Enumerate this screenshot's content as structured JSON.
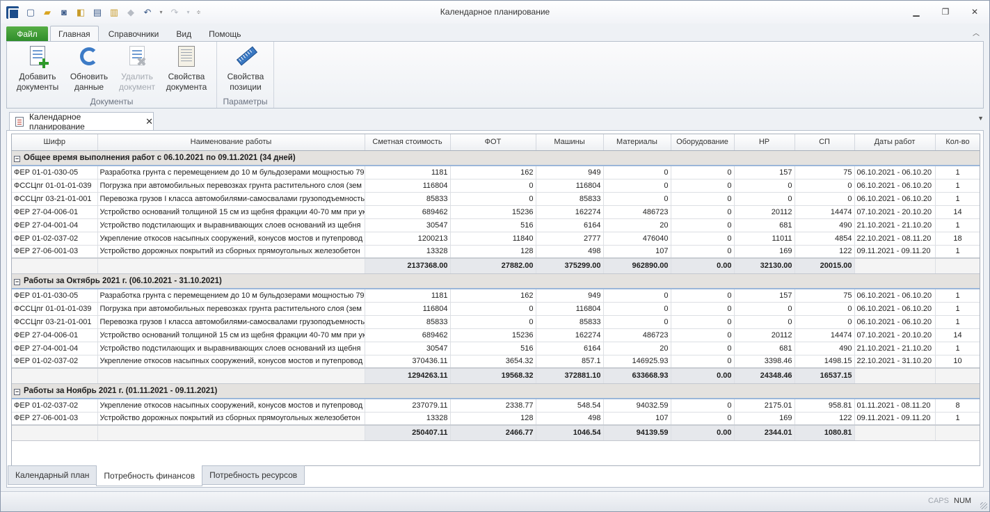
{
  "window": {
    "title": "Календарное планирование",
    "controls": [
      "minimize-icon",
      "restore-icon",
      "close-icon"
    ]
  },
  "quick_access": [
    "new-file-icon",
    "open-folder-icon",
    "save-icon",
    "save-all-icon",
    "print-icon",
    "print-preview-icon",
    "disabled-icon",
    "undo-icon",
    "redo-icon",
    "customize-icon"
  ],
  "ribbon": {
    "file_tab": "Файл",
    "tabs": [
      "Главная",
      "Справочники",
      "Вид",
      "Помощь"
    ],
    "active_tab": "Главная",
    "groups": [
      {
        "label": "Документы",
        "buttons": [
          {
            "line1": "Добавить",
            "line2": "документы",
            "icon": "add-document-icon",
            "enabled": true
          },
          {
            "line1": "Обновить",
            "line2": "данные",
            "icon": "refresh-icon",
            "enabled": true
          },
          {
            "line1": "Удалить",
            "line2": "документ",
            "icon": "delete-document-icon",
            "enabled": false
          },
          {
            "line1": "Свойства",
            "line2": "документа",
            "icon": "document-properties-icon",
            "enabled": true
          }
        ]
      },
      {
        "label": "Параметры",
        "buttons": [
          {
            "line1": "Свойства",
            "line2": "позиции",
            "icon": "ruler-icon",
            "enabled": true
          }
        ]
      }
    ]
  },
  "document_tab": {
    "label": "Календарное планирование",
    "close": "✕"
  },
  "grid": {
    "columns": [
      "Шифр",
      "Наименование работы",
      "Сметная стоимость",
      "ФОТ",
      "Машины",
      "Материалы",
      "Оборудование",
      "НР",
      "СП",
      "Даты работ",
      "Кол-во"
    ],
    "groups": [
      {
        "title": "Общее время выполнения работ с 06.10.2021 по 09.11.2021 (34 дней)",
        "rows": [
          [
            "ФЕР 01-01-030-05",
            "Разработка грунта с перемещением до 10 м бульдозерами мощностью 79 к",
            "1181",
            "162",
            "949",
            "0",
            "0",
            "157",
            "75",
            "06.10.2021 - 06.10.20",
            "1"
          ],
          [
            "ФССЦпг 01-01-01-039",
            "Погрузка при автомобильных перевозках грунта растительного слоя (зем",
            "116804",
            "0",
            "116804",
            "0",
            "0",
            "0",
            "0",
            "06.10.2021 - 06.10.20",
            "1"
          ],
          [
            "ФССЦпг 03-21-01-001",
            "Перевозка грузов I класса автомобилями-самосвалами грузоподъемностью",
            "85833",
            "0",
            "85833",
            "0",
            "0",
            "0",
            "0",
            "06.10.2021 - 06.10.20",
            "1"
          ],
          [
            "ФЕР 27-04-006-01",
            "Устройство оснований толщиной 15 см из щебня фракции 40-70 мм при ука",
            "689462",
            "15236",
            "162274",
            "486723",
            "0",
            "20112",
            "14474",
            "07.10.2021 - 20.10.20",
            "14"
          ],
          [
            "ФЕР 27-04-001-04",
            "Устройство подстилающих и выравнивающих слоев оснований из щебня",
            "30547",
            "516",
            "6164",
            "20",
            "0",
            "681",
            "490",
            "21.10.2021 - 21.10.20",
            "1"
          ],
          [
            "ФЕР 01-02-037-02",
            "Укрепление откосов насыпных сооружений, конусов мостов и путепровод",
            "1200213",
            "11840",
            "2777",
            "476040",
            "0",
            "11011",
            "4854",
            "22.10.2021 - 08.11.20",
            "18"
          ],
          [
            "ФЕР 27-06-001-03",
            "Устройство дорожных покрытий из сборных прямоугольных железобетон",
            "13328",
            "128",
            "498",
            "107",
            "0",
            "169",
            "122",
            "09.11.2021 - 09.11.20",
            "1"
          ]
        ],
        "totals": [
          "2137368.00",
          "27882.00",
          "375299.00",
          "962890.00",
          "0.00",
          "32130.00",
          "20015.00"
        ]
      },
      {
        "title": "Работы за Октябрь 2021 г. (06.10.2021 - 31.10.2021)",
        "rows": [
          [
            "ФЕР 01-01-030-05",
            "Разработка грунта с перемещением до 10 м бульдозерами мощностью 79 к",
            "1181",
            "162",
            "949",
            "0",
            "0",
            "157",
            "75",
            "06.10.2021 - 06.10.20",
            "1"
          ],
          [
            "ФССЦпг 01-01-01-039",
            "Погрузка при автомобильных перевозках грунта растительного слоя (зем",
            "116804",
            "0",
            "116804",
            "0",
            "0",
            "0",
            "0",
            "06.10.2021 - 06.10.20",
            "1"
          ],
          [
            "ФССЦпг 03-21-01-001",
            "Перевозка грузов I класса автомобилями-самосвалами грузоподъемностью",
            "85833",
            "0",
            "85833",
            "0",
            "0",
            "0",
            "0",
            "06.10.2021 - 06.10.20",
            "1"
          ],
          [
            "ФЕР 27-04-006-01",
            "Устройство оснований толщиной 15 см из щебня фракции 40-70 мм при ука",
            "689462",
            "15236",
            "162274",
            "486723",
            "0",
            "20112",
            "14474",
            "07.10.2021 - 20.10.20",
            "14"
          ],
          [
            "ФЕР 27-04-001-04",
            "Устройство подстилающих и выравнивающих слоев оснований из щебня",
            "30547",
            "516",
            "6164",
            "20",
            "0",
            "681",
            "490",
            "21.10.2021 - 21.10.20",
            "1"
          ],
          [
            "ФЕР 01-02-037-02",
            "Укрепление откосов насыпных сооружений, конусов мостов и путепровод",
            "370436.11",
            "3654.32",
            "857.1",
            "146925.93",
            "0",
            "3398.46",
            "1498.15",
            "22.10.2021 - 31.10.20",
            "10"
          ]
        ],
        "totals": [
          "1294263.11",
          "19568.32",
          "372881.10",
          "633668.93",
          "0.00",
          "24348.46",
          "16537.15"
        ]
      },
      {
        "title": "Работы за Ноябрь 2021 г. (01.11.2021 - 09.11.2021)",
        "rows": [
          [
            "ФЕР 01-02-037-02",
            "Укрепление откосов насыпных сооружений, конусов мостов и путепровод",
            "237079.11",
            "2338.77",
            "548.54",
            "94032.59",
            "0",
            "2175.01",
            "958.81",
            "01.11.2021 - 08.11.20",
            "8"
          ],
          [
            "ФЕР 27-06-001-03",
            "Устройство дорожных покрытий из сборных прямоугольных железобетон",
            "13328",
            "128",
            "498",
            "107",
            "0",
            "169",
            "122",
            "09.11.2021 - 09.11.20",
            "1"
          ]
        ],
        "totals": [
          "250407.11",
          "2466.77",
          "1046.54",
          "94139.59",
          "0.00",
          "2344.01",
          "1080.81"
        ]
      }
    ]
  },
  "bottom_tabs": [
    "Календарный план",
    "Потребность финансов",
    "Потребность ресурсов"
  ],
  "active_bottom_tab": "Потребность финансов",
  "statusbar": {
    "caps": "CAPS",
    "num": "NUM"
  },
  "colors": {
    "file_tab": "#2e8c2a",
    "group_row": "#e4e2df",
    "group_underline": "#9ab6d9",
    "accent": "#3d7bc6"
  }
}
